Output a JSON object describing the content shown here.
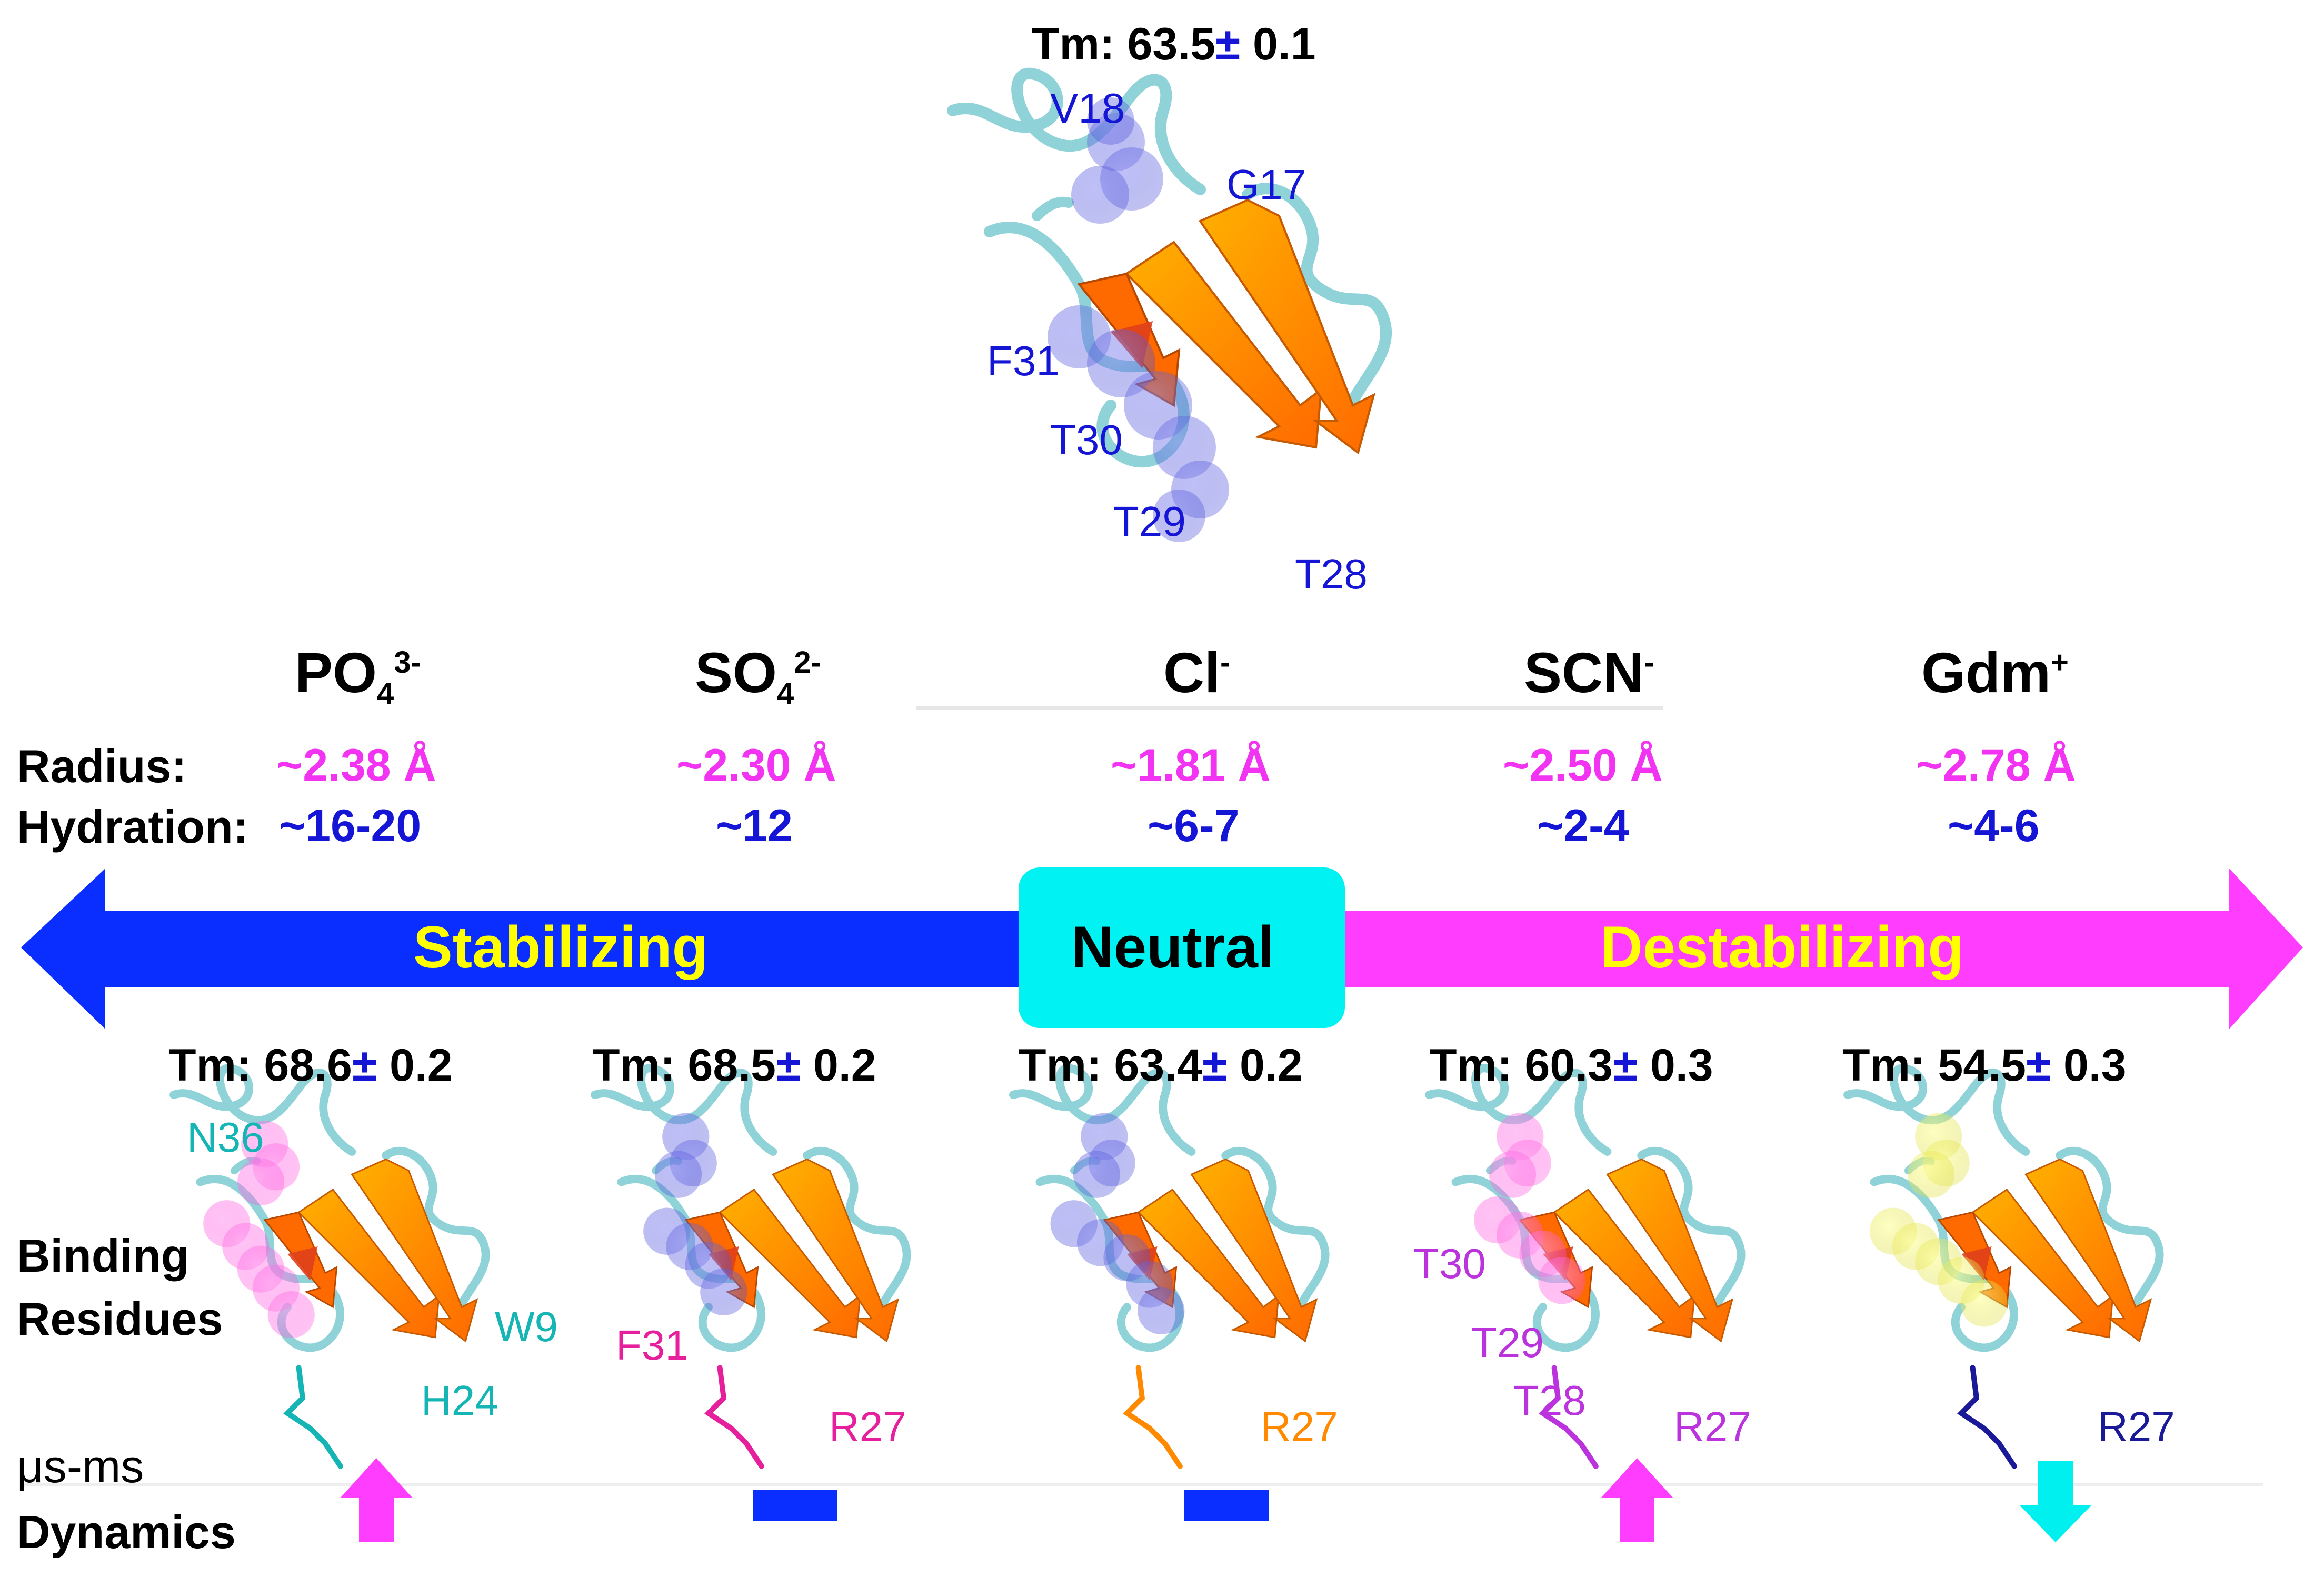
{
  "top_structure": {
    "tm_label": "Tm:",
    "tm_value": "63.5",
    "tm_pm": "±",
    "tm_err": "0.1",
    "residues": [
      "V18",
      "G17",
      "F31",
      "T30",
      "T29",
      "T28"
    ]
  },
  "row_labels": {
    "radius": "Radius:",
    "hydration": "Hydration:",
    "binding_1": "Binding",
    "binding_2": "Residues",
    "dynamics_1": "μs-ms",
    "dynamics_2": "Dynamics"
  },
  "ions": [
    {
      "base": "PO",
      "sub": "4",
      "sup": "3-",
      "radius": "~2.38 Å",
      "hydration": "~16-20",
      "tm_value": "68.6",
      "tm_err": "0.2",
      "sphere_color": "#ff66dd",
      "residue_color": "#16b5b5",
      "residues": [
        "N36",
        "W9",
        "H24"
      ],
      "dynamics": "up",
      "dynamics_color": "#ff3dff"
    },
    {
      "base": "SO",
      "sub": "4",
      "sup": "2-",
      "radius": "~2.30 Å",
      "hydration": "~12",
      "tm_value": "68.5",
      "tm_err": "0.2",
      "sphere_color": "#5a5ee0",
      "residue_color": "#e6209d",
      "residues": [
        "F31",
        "R27"
      ],
      "dynamics": "flat",
      "dynamics_color": "#0a2eff"
    },
    {
      "base": "Cl",
      "sub": "",
      "sup": "-",
      "radius": "~1.81 Å",
      "hydration": "~6-7",
      "tm_value": "63.4",
      "tm_err": "0.2",
      "sphere_color": "#5a5ee0",
      "residue_color": "#ff8a00",
      "residues": [
        "R27"
      ],
      "dynamics": "flat",
      "dynamics_color": "#0a2eff"
    },
    {
      "base": "SCN",
      "sub": "",
      "sup": "-",
      "radius": "~2.50 Å",
      "hydration": "~2-4",
      "tm_value": "60.3",
      "tm_err": "0.3",
      "sphere_color": "#ff66dd",
      "residue_color": "#bb33dd",
      "residues": [
        "T30",
        "T29",
        "T28",
        "R27"
      ],
      "dynamics": "up",
      "dynamics_color": "#ff3dff"
    },
    {
      "base": "Gdm",
      "sub": "",
      "sup": "+",
      "radius": "~2.78 Å",
      "hydration": "~4-6",
      "tm_value": "54.5",
      "tm_err": "0.3",
      "sphere_color": "#e8e84a",
      "residue_color": "#1a1a99",
      "residues": [
        "R27"
      ],
      "dynamics": "down",
      "dynamics_color": "#00f0f0"
    }
  ],
  "tm_label": "Tm:",
  "pm_symbol": "±",
  "arrow": {
    "stabilizing": "Stabilizing",
    "neutral": "Neutral",
    "destabilizing": "Destabilizing",
    "stabilizing_color": "#0a2eff",
    "neutral_color": "#00f2f2",
    "destabilizing_color": "#ff3dff",
    "label_color": "#ffff00"
  },
  "colors": {
    "backbone": "#8fd3d8",
    "strand": "#ff8a00",
    "blue_label": "#1515d6"
  }
}
